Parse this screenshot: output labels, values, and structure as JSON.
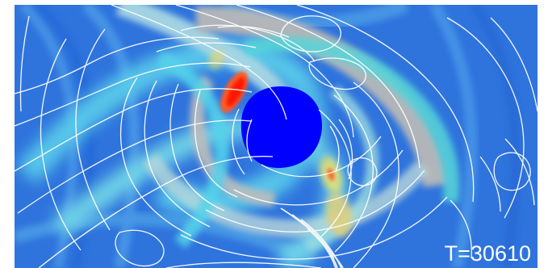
{
  "simulation": {
    "time_label": "T=30610"
  },
  "colors": {
    "background_blue": "#2f74dd",
    "deep_blue": "#0000ff",
    "cyan": "#45d8e8",
    "light_cyan": "#9be6e6",
    "grey": "#b8b8b8",
    "yellow": "#e7d86a",
    "red": "#ff2a00",
    "contour": "#ffffff"
  }
}
